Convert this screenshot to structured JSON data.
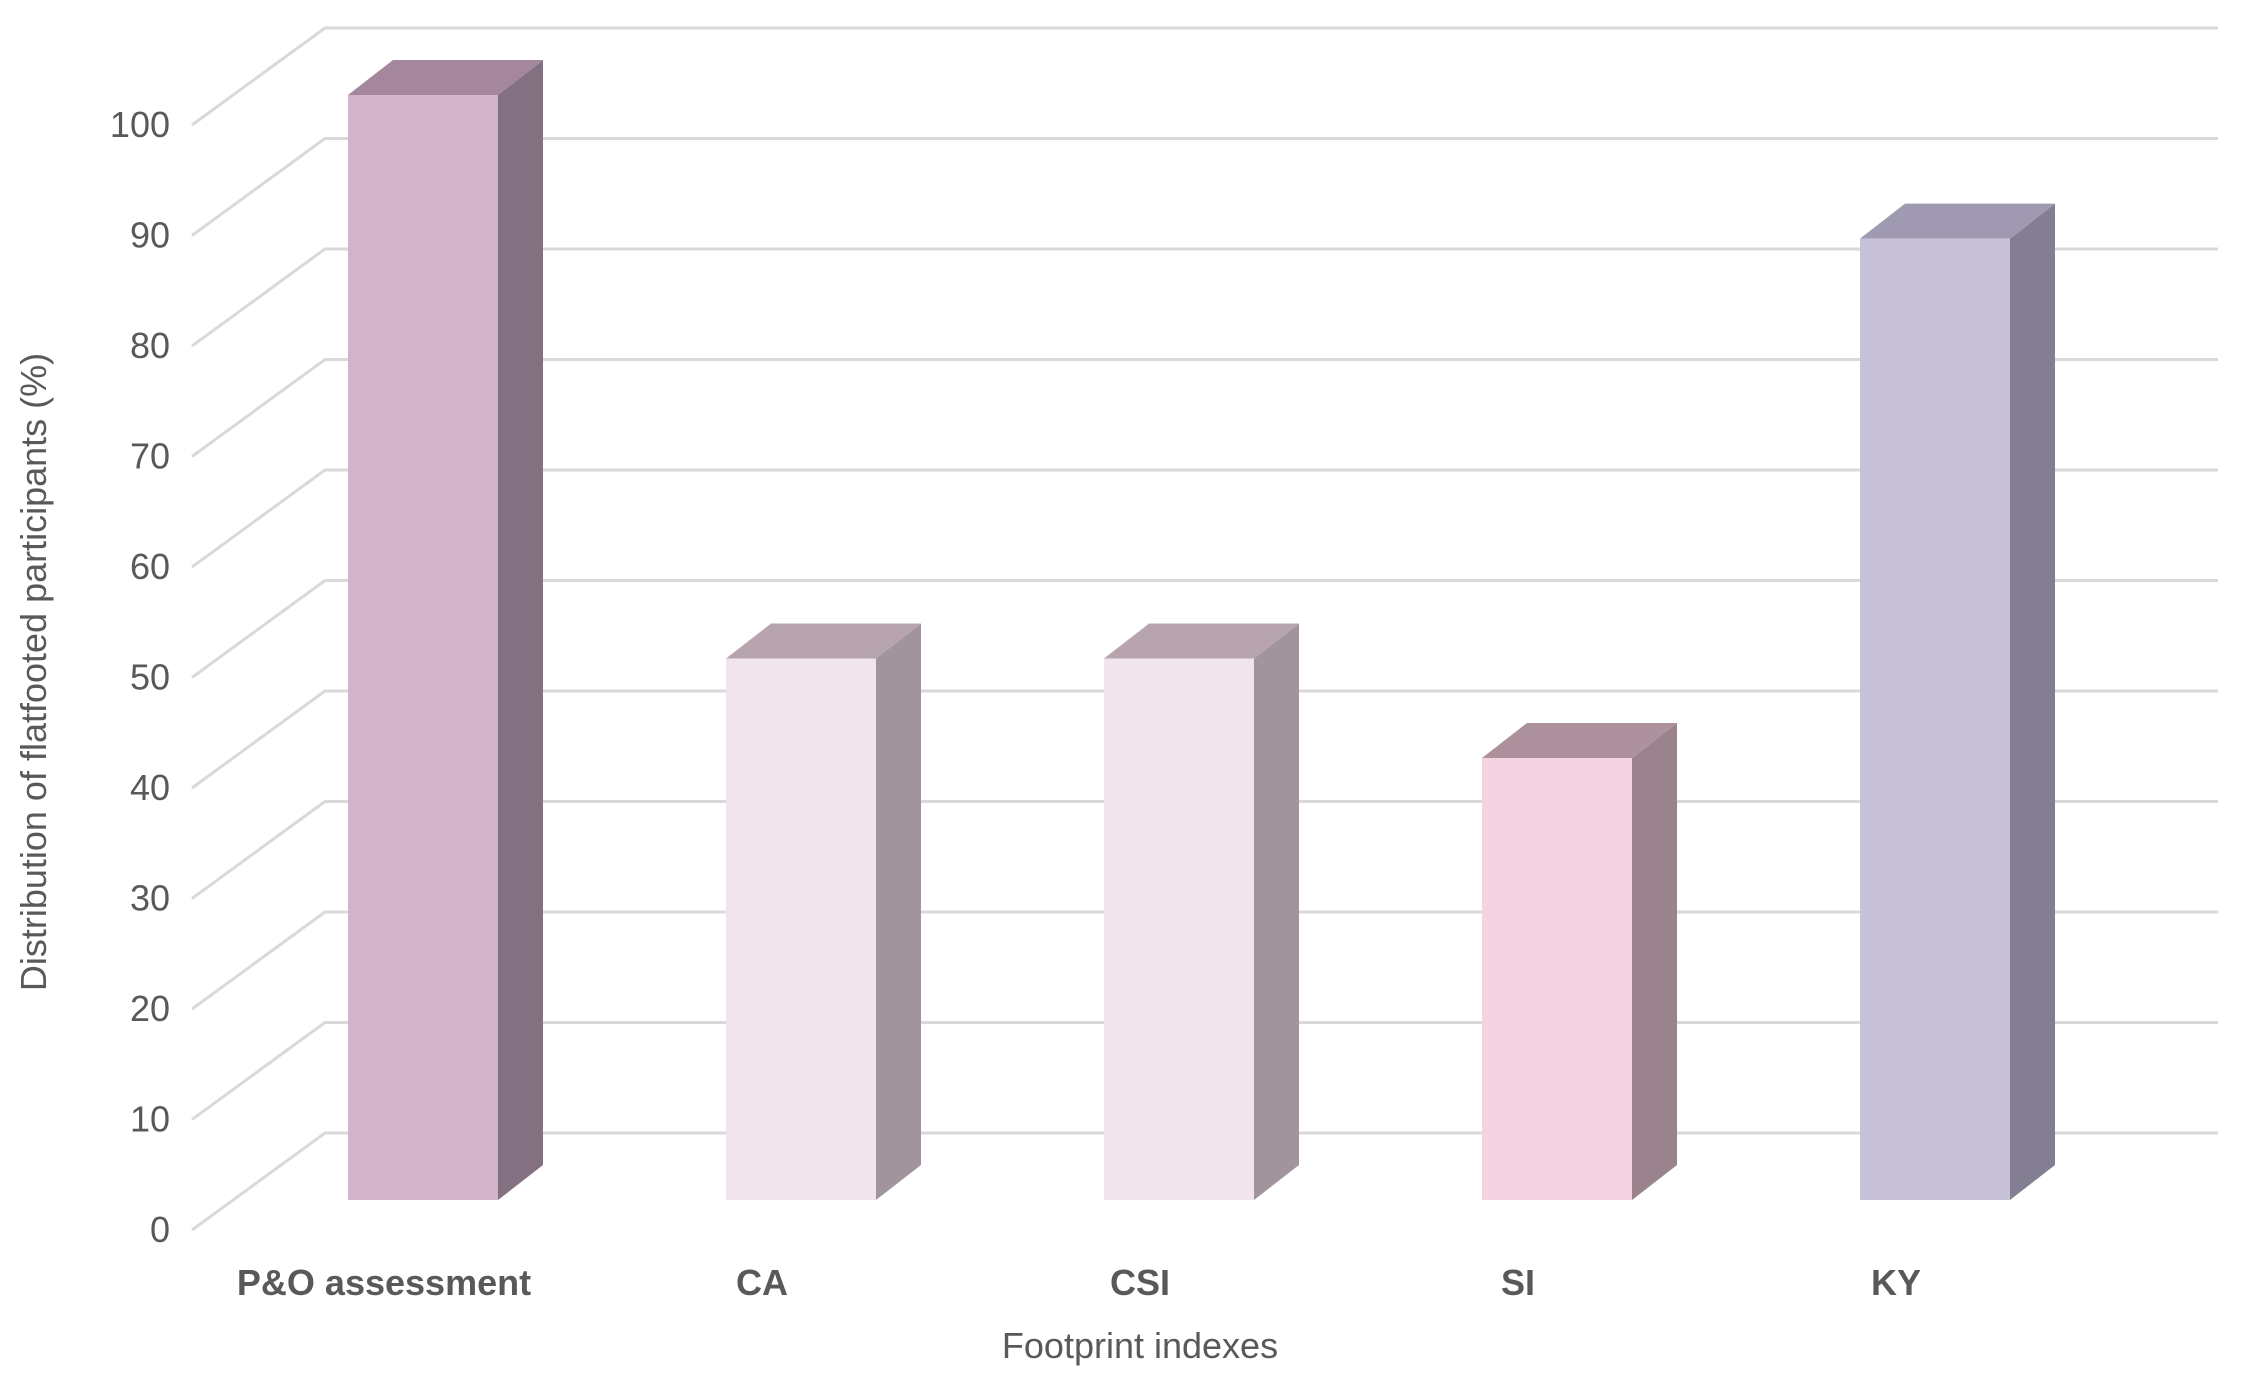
{
  "chart_data": {
    "type": "bar",
    "variant": "3d-column",
    "title": "",
    "xlabel": "Footprint indexes",
    "ylabel": "Distribution of flatfooted participants (%)",
    "categories": [
      "P&O assessment",
      "CA",
      "CSI",
      "SI",
      "KY"
    ],
    "values": [
      100,
      49,
      49,
      40,
      87
    ],
    "ylim": [
      0,
      100
    ],
    "ytick_step": 10,
    "yticks": [
      0,
      10,
      20,
      30,
      40,
      50,
      60,
      70,
      80,
      90,
      100
    ],
    "grid": true,
    "legend": "none",
    "background_color": "#ffffff",
    "gridline_color": "#d9d9d9",
    "axis_text_color": "#595959",
    "bars": [
      {
        "label": "P&O assessment",
        "value": 100,
        "front": "#d1b3ca",
        "top": "#a4879d",
        "side": "#837080"
      },
      {
        "label": "CA",
        "value": 49,
        "front": "#f2e4ec",
        "top": "#b7a4ae",
        "side": "#a2949c"
      },
      {
        "label": "CSI",
        "value": 49,
        "front": "#f2e4ec",
        "top": "#b7a4ae",
        "side": "#a2949c"
      },
      {
        "label": "SI",
        "value": 40,
        "front": "#f2d3df",
        "top": "#ad919d",
        "side": "#9b838e"
      },
      {
        "label": "KY",
        "value": 87,
        "front": "#c8c2d8",
        "top": "#9f99b2",
        "side": "#837e92"
      }
    ]
  }
}
